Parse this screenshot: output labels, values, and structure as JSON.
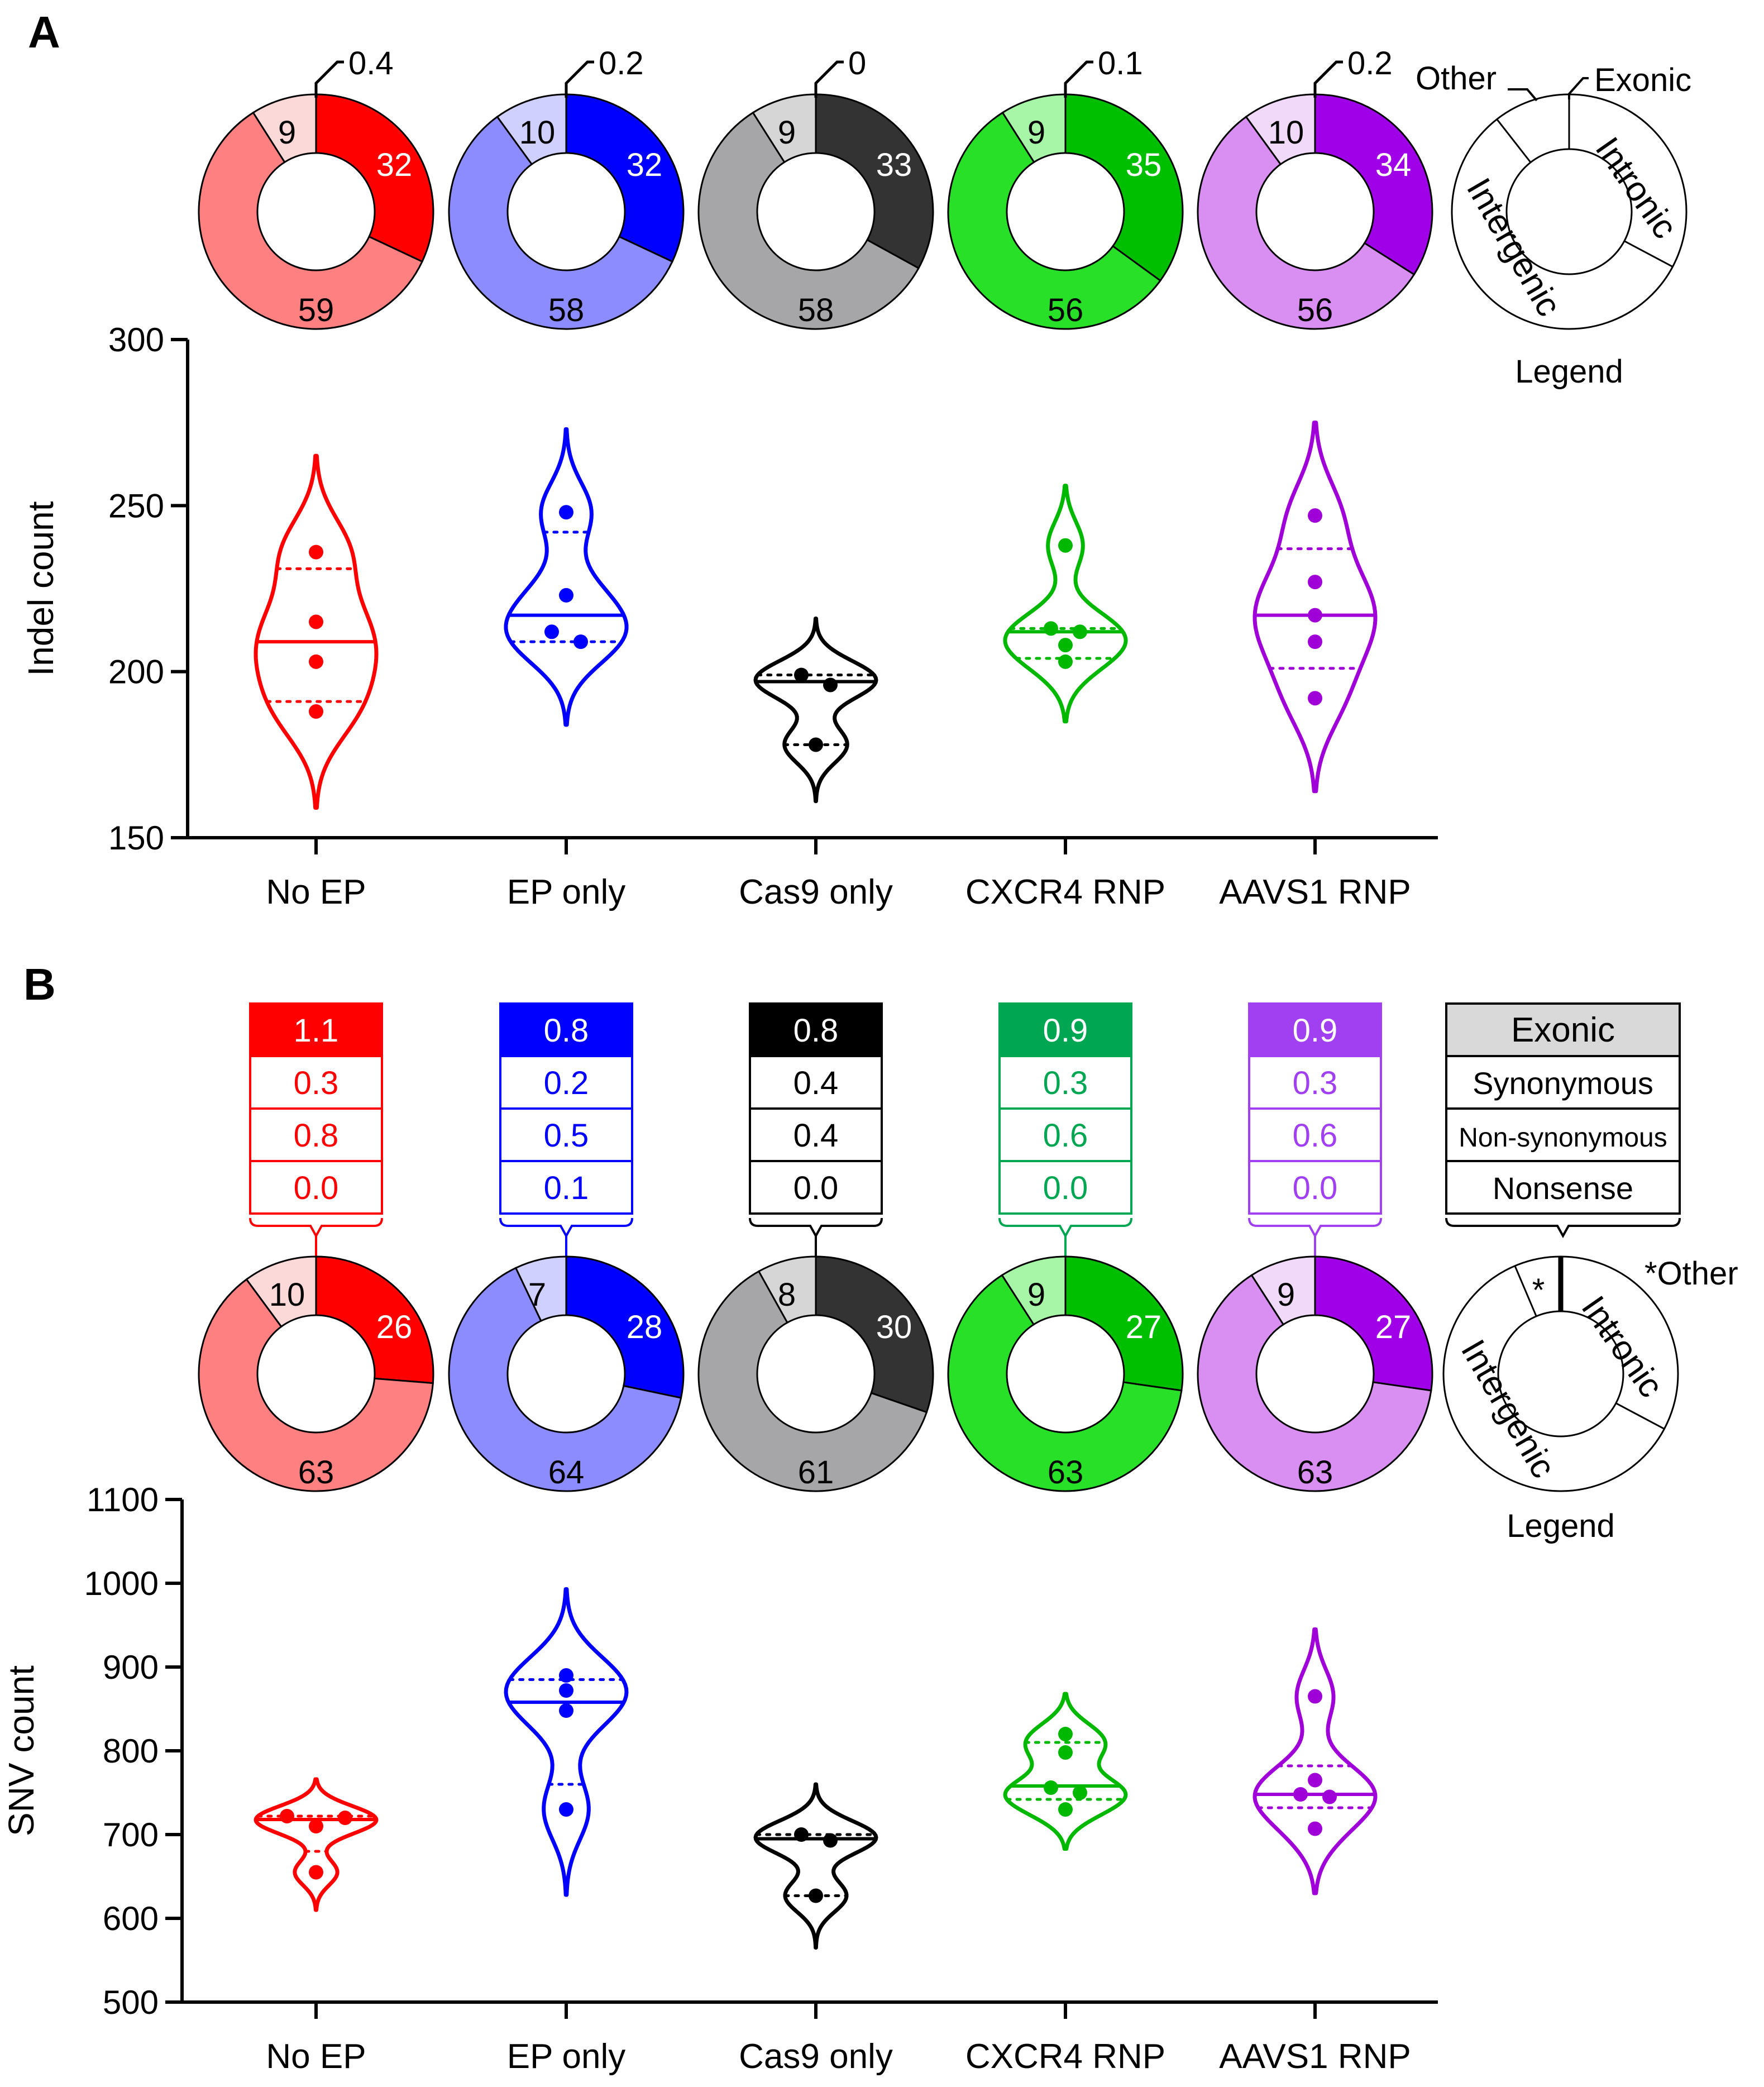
{
  "panels": {
    "a_label": "A",
    "b_label": "B"
  },
  "colors": {
    "red": {
      "ex": "#ff0000",
      "intr": "#ff8080",
      "other": "#fcd9d9",
      "line": "#ff0000",
      "tint": "#ff0000"
    },
    "blue": {
      "ex": "#0000ff",
      "intr": "#8c8cff",
      "other": "#d0d0ff",
      "line": "#0000ff",
      "tint": "#0000ff"
    },
    "gray": {
      "ex": "#333333",
      "intr": "#a6a6a8",
      "other": "#d6d6d6",
      "line": "#000000",
      "tint": "#000000"
    },
    "green": {
      "ex": "#00bf00",
      "intr": "#28e028",
      "other": "#a7f6a7",
      "line": "#00b800",
      "tint": "#00a651"
    },
    "purple": {
      "ex": "#a000e8",
      "intr": "#d98ff2",
      "other": "#f0d9f9",
      "line": "#a000d8",
      "tint": "#a040f0"
    }
  },
  "groups": [
    "No EP",
    "EP only",
    "Cas9 only",
    "CXCR4 RNP",
    "AAVS1 RNP"
  ],
  "panel_a": {
    "pies": [
      {
        "color": "red",
        "exonic": 0.4,
        "intronic": 32,
        "intergenic": 59,
        "other": 9
      },
      {
        "color": "blue",
        "exonic": 0.2,
        "intronic": 32,
        "intergenic": 58,
        "other": 10
      },
      {
        "color": "gray",
        "exonic": 0.0,
        "intronic": 33,
        "intergenic": 58,
        "other": 9
      },
      {
        "color": "green",
        "exonic": 0.1,
        "intronic": 35,
        "intergenic": 56,
        "other": 9
      },
      {
        "color": "purple",
        "exonic": 0.2,
        "intronic": 34,
        "intergenic": 56,
        "other": 10
      }
    ],
    "legend": {
      "other": "Other",
      "exonic": "Exonic",
      "intronic": "Intronic",
      "intergenic": "Intergenic",
      "title": "Legend"
    }
  },
  "panel_b": {
    "tables": [
      {
        "color": "red",
        "rows": [
          "1.1",
          "0.3",
          "0.8",
          "0.0"
        ]
      },
      {
        "color": "blue",
        "rows": [
          "0.8",
          "0.2",
          "0.5",
          "0.1"
        ]
      },
      {
        "color": "gray",
        "rows": [
          "0.8",
          "0.4",
          "0.4",
          "0.0"
        ]
      },
      {
        "color": "green",
        "rows": [
          "0.9",
          "0.3",
          "0.6",
          "0.0"
        ]
      },
      {
        "color": "purple",
        "rows": [
          "0.9",
          "0.3",
          "0.6",
          "0.0"
        ]
      }
    ],
    "legend_table": [
      "Exonic",
      "Synonymous",
      "Non-synonymous",
      "Nonsense"
    ],
    "pies": [
      {
        "color": "red",
        "intronic": 26,
        "intergenic": 63,
        "other": 10
      },
      {
        "color": "blue",
        "intronic": 28,
        "intergenic": 64,
        "other": 7
      },
      {
        "color": "gray",
        "intronic": 30,
        "intergenic": 61,
        "other": 8
      },
      {
        "color": "green",
        "intronic": 27,
        "intergenic": 63,
        "other": 9
      },
      {
        "color": "purple",
        "intronic": 27,
        "intergenic": 63,
        "other": 9
      }
    ],
    "legend": {
      "star": "*",
      "other": "*Other",
      "intronic": "Intronic",
      "intergenic": "Intergenic",
      "title": "Legend"
    }
  },
  "chart_data": [
    {
      "type": "violin",
      "title": "",
      "xlabel": "",
      "ylabel": "Indel count",
      "ylim": [
        150,
        300
      ],
      "yticks": [
        150,
        200,
        250,
        300
      ],
      "categories": [
        "No EP",
        "EP only",
        "Cas9 only",
        "CXCR4 RNP",
        "AAVS1 RNP"
      ],
      "series": [
        {
          "name": "No EP",
          "color": "red",
          "points": [
            236,
            215,
            203,
            188
          ],
          "median": 209,
          "q1": 191,
          "q3": 231,
          "range": [
            159,
            265
          ]
        },
        {
          "name": "EP only",
          "color": "blue",
          "points": [
            248,
            223,
            212,
            209
          ],
          "median": 217,
          "q1": 209,
          "q3": 242,
          "range": [
            184,
            273
          ]
        },
        {
          "name": "Cas9 only",
          "color": "gray",
          "points": [
            199,
            196,
            178
          ],
          "median": 197,
          "q1": 178,
          "q3": 199,
          "range": [
            161,
            216
          ]
        },
        {
          "name": "CXCR4 RNP",
          "color": "green",
          "points": [
            238,
            213,
            212,
            208,
            203
          ],
          "median": 212,
          "q1": 204,
          "q3": 213,
          "range": [
            185,
            256
          ]
        },
        {
          "name": "AAVS1 RNP",
          "color": "purple",
          "points": [
            247,
            227,
            217,
            209,
            192
          ],
          "median": 217,
          "q1": 201,
          "q3": 237,
          "range": [
            164,
            275
          ]
        }
      ]
    },
    {
      "type": "violin",
      "title": "",
      "xlabel": "",
      "ylabel": "SNV count",
      "ylim": [
        500,
        1100
      ],
      "yticks": [
        500,
        600,
        700,
        800,
        900,
        1000,
        1100
      ],
      "categories": [
        "No EP",
        "EP only",
        "Cas9 only",
        "CXCR4 RNP",
        "AAVS1 RNP"
      ],
      "series": [
        {
          "name": "No EP",
          "color": "red",
          "points": [
            722,
            710,
            720,
            655
          ],
          "median": 718,
          "q1": 680,
          "q3": 722,
          "range": [
            610,
            766
          ]
        },
        {
          "name": "EP only",
          "color": "blue",
          "points": [
            890,
            872,
            848,
            730
          ],
          "median": 858,
          "q1": 760,
          "q3": 885,
          "range": [
            628,
            993
          ]
        },
        {
          "name": "Cas9 only",
          "color": "gray",
          "points": [
            700,
            693,
            627
          ],
          "median": 695,
          "q1": 627,
          "q3": 700,
          "range": [
            565,
            760
          ]
        },
        {
          "name": "CXCR4 RNP",
          "color": "green",
          "points": [
            820,
            798,
            756,
            750,
            730
          ],
          "median": 758,
          "q1": 742,
          "q3": 810,
          "range": [
            683,
            868
          ]
        },
        {
          "name": "AAVS1 RNP",
          "color": "purple",
          "points": [
            865,
            765,
            748,
            745,
            707
          ],
          "median": 748,
          "q1": 732,
          "q3": 782,
          "range": [
            630,
            945
          ]
        }
      ]
    }
  ]
}
